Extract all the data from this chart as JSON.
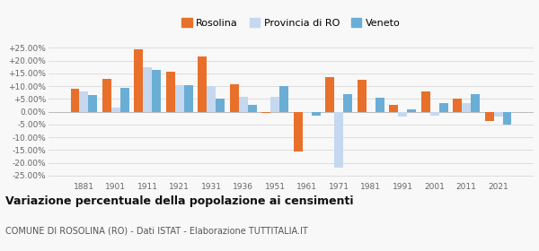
{
  "years": [
    1881,
    1901,
    1911,
    1921,
    1931,
    1936,
    1951,
    1961,
    1971,
    1981,
    1991,
    2001,
    2011,
    2021
  ],
  "rosolina": [
    9.0,
    13.0,
    24.5,
    15.5,
    21.5,
    10.8,
    -0.5,
    -15.5,
    13.5,
    12.5,
    2.5,
    8.0,
    5.0,
    -3.5
  ],
  "provincia_ro": [
    8.0,
    1.5,
    17.5,
    10.5,
    10.0,
    6.0,
    6.0,
    -0.5,
    -22.0,
    0.0,
    -2.0,
    -1.5,
    3.5,
    -2.0
  ],
  "veneto": [
    6.5,
    9.5,
    16.5,
    10.5,
    5.0,
    2.5,
    10.0,
    -1.5,
    7.0,
    5.5,
    1.0,
    3.5,
    7.0,
    -5.0
  ],
  "rosolina_color": "#e8702a",
  "provincia_color": "#c5d8f0",
  "veneto_color": "#6aaed6",
  "title": "Variazione percentuale della popolazione ai censimenti",
  "subtitle": "COMUNE DI ROSOLINA (RO) - Dati ISTAT - Elaborazione TUTTITALIA.IT",
  "ylim": [
    -27,
    28
  ],
  "yticks": [
    -25,
    -20,
    -15,
    -10,
    -5,
    0,
    5,
    10,
    15,
    20,
    25
  ],
  "bg_color": "#f8f8f8",
  "grid_color": "#d8d8d8"
}
